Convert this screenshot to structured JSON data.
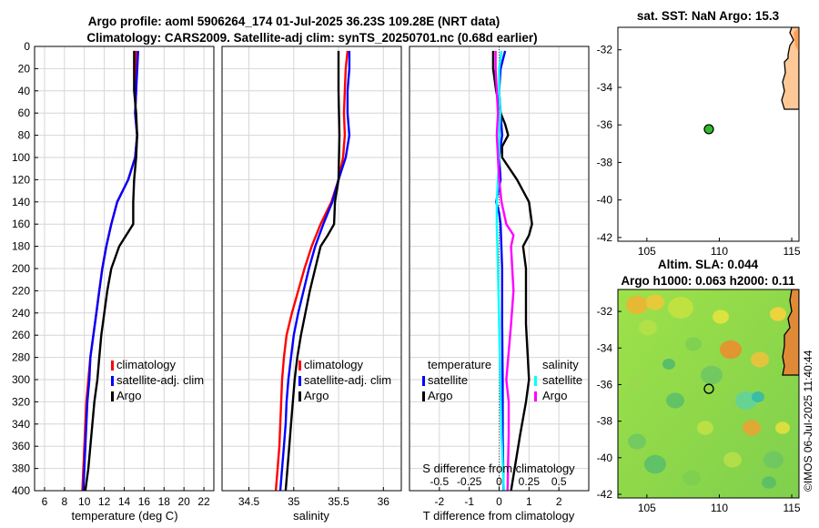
{
  "title_line1": "Argo profile: aoml 5906264_174 01-Jul-2025 36.23S 109.28E (NRT data)",
  "title_line2": "Climatology: CARS2009. Satellite-adj clim: synTS_20250701.nc (0.68d earlier)",
  "credit": "©IMOS 06-Jul-2025 11:40:44",
  "colors": {
    "clim": "#ff0000",
    "sat": "#0000ff",
    "argo": "#000000",
    "cyan": "#00ffff",
    "magenta": "#ff00ff"
  },
  "chart_data": [
    {
      "id": "temperature",
      "type": "line",
      "xlabel": "temperature (deg C)",
      "ylabel": "",
      "xlim": [
        5,
        23
      ],
      "ylim": [
        400,
        0
      ],
      "xticks": [
        6,
        8,
        10,
        12,
        14,
        16,
        18,
        20,
        22
      ],
      "yticks": [
        0,
        20,
        40,
        60,
        80,
        100,
        120,
        140,
        160,
        180,
        200,
        220,
        240,
        260,
        280,
        300,
        320,
        340,
        360,
        380,
        400
      ],
      "legend": [
        "climatology",
        "satellite-adj. clim",
        "Argo"
      ],
      "series": [
        {
          "name": "climatology",
          "color": "#ff0000",
          "depth": [
            4,
            40,
            60,
            80,
            100,
            120,
            140,
            160,
            180,
            200,
            220,
            240,
            260,
            280,
            300,
            320,
            340,
            360,
            380,
            400
          ],
          "values": [
            15.2,
            15.2,
            15.1,
            15.3,
            15.1,
            14.4,
            13.3,
            12.7,
            12.2,
            11.8,
            11.5,
            11.2,
            10.9,
            10.6,
            10.4,
            10.2,
            10.1,
            10.0,
            9.9,
            9.8
          ]
        },
        {
          "name": "satellite-adj. clim",
          "color": "#0000ff",
          "depth": [
            4,
            40,
            60,
            80,
            100,
            120,
            140,
            160,
            180,
            200,
            220,
            240,
            260,
            280,
            300,
            320,
            340,
            360,
            380,
            400
          ],
          "values": [
            15.4,
            15.2,
            15.1,
            15.3,
            15.1,
            14.4,
            13.3,
            12.7,
            12.2,
            11.8,
            11.5,
            11.2,
            10.9,
            10.6,
            10.5,
            10.3,
            10.2,
            10.1,
            10.0,
            9.9
          ]
        },
        {
          "name": "Argo",
          "color": "#000000",
          "depth": [
            4,
            40,
            60,
            80,
            100,
            120,
            140,
            160,
            170,
            180,
            200,
            220,
            240,
            260,
            280,
            300,
            320,
            340,
            360,
            380,
            400
          ],
          "values": [
            15.0,
            15.0,
            15.2,
            15.3,
            15.2,
            15.0,
            14.9,
            14.9,
            14.2,
            13.5,
            12.7,
            12.3,
            12.0,
            11.7,
            11.5,
            11.3,
            11.0,
            10.8,
            10.6,
            10.4,
            10.1
          ]
        }
      ]
    },
    {
      "id": "salinity",
      "type": "line",
      "xlabel": "salinity",
      "ylabel": "",
      "xlim": [
        34.2,
        36.2
      ],
      "ylim": [
        400,
        0
      ],
      "xticks": [
        34.5,
        35,
        35.5,
        36
      ],
      "xticklabels": [
        "34.5",
        "35",
        "35.5",
        "36"
      ],
      "legend": [
        "climatology",
        "satellite-adj. clim",
        "Argo"
      ],
      "series": [
        {
          "name": "climatology",
          "color": "#ff0000",
          "depth": [
            4,
            20,
            40,
            60,
            80,
            100,
            120,
            140,
            160,
            180,
            200,
            220,
            240,
            260,
            280,
            300,
            320,
            340,
            360,
            380,
            400
          ],
          "values": [
            35.6,
            35.58,
            35.57,
            35.56,
            35.57,
            35.55,
            35.5,
            35.42,
            35.3,
            35.2,
            35.12,
            35.05,
            34.98,
            34.92,
            34.89,
            34.87,
            34.86,
            34.85,
            34.84,
            34.82,
            34.8
          ]
        },
        {
          "name": "satellite-adj. clim",
          "color": "#0000ff",
          "depth": [
            4,
            20,
            40,
            60,
            80,
            100,
            120,
            140,
            160,
            180,
            200,
            220,
            240,
            260,
            280,
            300,
            320,
            340,
            360,
            380,
            400
          ],
          "values": [
            35.62,
            35.62,
            35.6,
            35.6,
            35.62,
            35.58,
            35.5,
            35.43,
            35.33,
            35.24,
            35.17,
            35.11,
            35.05,
            35.0,
            34.97,
            34.94,
            34.92,
            34.91,
            34.89,
            34.87,
            34.85
          ]
        },
        {
          "name": "Argo",
          "color": "#000000",
          "depth": [
            4,
            40,
            80,
            120,
            140,
            160,
            170,
            180,
            200,
            220,
            240,
            260,
            280,
            300,
            320,
            340,
            360,
            380,
            400
          ],
          "values": [
            35.5,
            35.5,
            35.51,
            35.5,
            35.46,
            35.45,
            35.38,
            35.3,
            35.24,
            35.18,
            35.13,
            35.08,
            35.04,
            35.01,
            34.99,
            34.97,
            34.95,
            34.93,
            34.91
          ]
        }
      ]
    },
    {
      "id": "difference",
      "type": "line",
      "xlabel": "T difference from climatology",
      "x2label": "S difference from climatology",
      "xlim": [
        -3,
        3
      ],
      "ylim": [
        400,
        0
      ],
      "xticks": [
        -2,
        -1,
        0,
        1,
        2
      ],
      "xticklabels": [
        "-2",
        "-1",
        "0",
        "1",
        "2"
      ],
      "sticks": [
        -0.5,
        -0.25,
        0,
        0.25,
        0.5
      ],
      "sticklabels": [
        "-0.5",
        "-0.25",
        "0",
        "0.25",
        "0.5"
      ],
      "legend_t_title": "temperature",
      "legend_s_title": "salinity",
      "legend_t": [
        "satellite",
        "Argo"
      ],
      "legend_s": [
        "satellite",
        "Argo"
      ],
      "series": [
        {
          "name": "T satellite",
          "color": "#0000ff",
          "depth": [
            4,
            20,
            40,
            60,
            80,
            100,
            120,
            140,
            150,
            160,
            200,
            250,
            300,
            350,
            400
          ],
          "values": [
            0.2,
            0.05,
            0.0,
            0.05,
            0.1,
            0.0,
            0.05,
            -0.1,
            0.0,
            0.05,
            0.1,
            0.1,
            0.12,
            0.12,
            0.15
          ]
        },
        {
          "name": "T Argo",
          "color": "#000000",
          "depth": [
            4,
            20,
            40,
            60,
            70,
            80,
            90,
            100,
            120,
            140,
            160,
            170,
            180,
            200,
            250,
            300,
            320,
            350,
            400
          ],
          "values": [
            -0.2,
            -0.2,
            -0.1,
            0.05,
            0.2,
            0.3,
            0.1,
            0.1,
            0.6,
            1.0,
            1.1,
            1.0,
            0.8,
            0.9,
            0.9,
            1.0,
            0.9,
            0.7,
            0.4
          ]
        },
        {
          "name": "S satellite",
          "color": "#00ffff",
          "depth": [
            4,
            20,
            40,
            60,
            80,
            100,
            120,
            140,
            160,
            200,
            250,
            300,
            350,
            400
          ],
          "values": [
            0.02,
            0.0,
            0.0,
            0.01,
            0.0,
            0.0,
            -0.01,
            -0.02,
            -0.02,
            -0.01,
            0.0,
            0.01,
            0.02,
            0.04
          ]
        },
        {
          "name": "S Argo",
          "color": "#ff00ff",
          "depth": [
            4,
            20,
            40,
            60,
            80,
            100,
            120,
            140,
            160,
            170,
            180,
            200,
            220,
            250,
            300,
            320,
            350,
            400
          ],
          "values": [
            -0.03,
            -0.03,
            -0.02,
            -0.01,
            -0.02,
            -0.01,
            0.0,
            0.02,
            0.06,
            0.12,
            0.1,
            0.11,
            0.12,
            0.1,
            0.06,
            0.08,
            0.08,
            0.07
          ]
        }
      ]
    },
    {
      "id": "map_sst",
      "type": "scatter",
      "title": "sat. SST: NaN Argo: 15.3",
      "xlim": [
        103,
        115.5
      ],
      "ylim": [
        -42.2,
        -30.8
      ],
      "xticks": [
        105,
        110,
        115
      ],
      "yticks": [
        -32,
        -34,
        -36,
        -38,
        -40,
        -42
      ],
      "point": {
        "lon": 109.28,
        "lat": -36.23
      }
    },
    {
      "id": "map_sla",
      "type": "heatmap",
      "title1": "Altim. SLA: 0.044",
      "title2": "Argo h1000: 0.063 h2000: 0.11",
      "xlim": [
        103,
        115.5
      ],
      "ylim": [
        -42.2,
        -30.8
      ],
      "xticks": [
        105,
        110,
        115
      ],
      "yticks": [
        -32,
        -34,
        -36,
        -38,
        -40,
        -42
      ],
      "point": {
        "lon": 109.28,
        "lat": -36.23
      }
    }
  ]
}
